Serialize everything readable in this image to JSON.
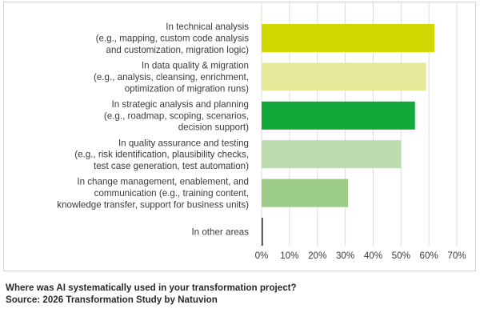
{
  "chart_data": {
    "type": "bar",
    "orientation": "horizontal",
    "categories": [
      [
        "In technical analysis",
        "(e.g., mapping, custom code analysis",
        "and customization, migration logic)"
      ],
      [
        "In data quality & migration",
        "(e.g., analysis, cleansing, enrichment,",
        "optimization of migration runs)"
      ],
      [
        "In strategic analysis and planning",
        "(e.g., roadmap, scoping, scenarios,",
        "decision support)"
      ],
      [
        "In quality assurance and testing",
        "(e.g., risk identification, plausibility checks,",
        "test case generation, test automation)"
      ],
      [
        "In change management, enablement, and",
        "communication (e.g., training content,",
        "knowledge transfer, support for business units)"
      ],
      [
        "In other areas"
      ]
    ],
    "values": [
      62,
      59,
      55,
      50,
      31,
      0.3
    ],
    "bar_colors": [
      "#cfd600",
      "#e6e89a",
      "#13a83a",
      "#bcdcb0",
      "#9ccb86",
      "#1a1a1a"
    ],
    "xlim": [
      0,
      70
    ],
    "x_ticks": [
      "0%",
      "10%",
      "20%",
      "30%",
      "40%",
      "50%",
      "60%",
      "70%"
    ],
    "grid": "vertical",
    "title": "",
    "xlabel": "",
    "ylabel": ""
  },
  "caption": {
    "line1": "Where was AI systematically used in your transformation project?",
    "line2": "Source: 2026 Transformation Study by Natuvion"
  }
}
